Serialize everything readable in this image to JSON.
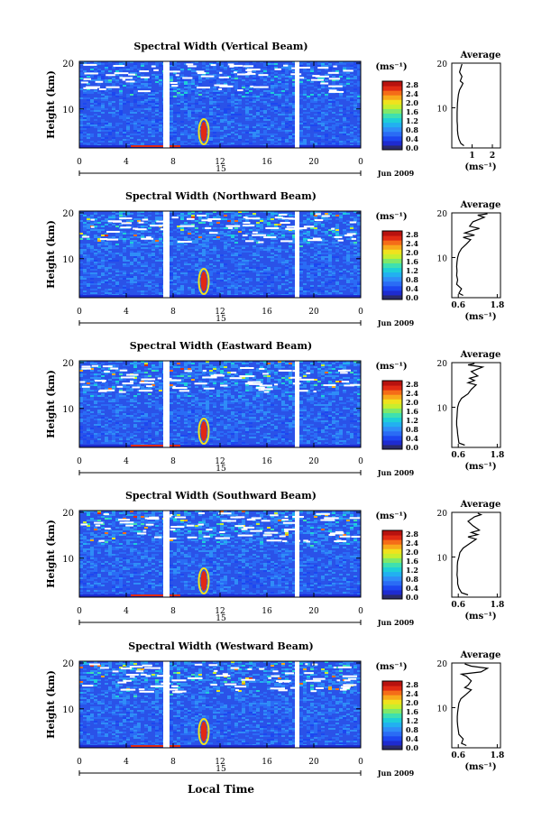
{
  "xlabel": "Local Time",
  "colorbar_unit": "(ms⁻¹)",
  "colorbar_ticks": [
    "0.0",
    "0.4",
    "0.8",
    "1.2",
    "1.6",
    "2.0",
    "2.4",
    "2.8"
  ],
  "colorbar_colors": [
    "#2b2b6b",
    "#1e2bd0",
    "#1d47f0",
    "#2a6cf5",
    "#2f8df7",
    "#22b0f0",
    "#1ecfd8",
    "#3fe0b0",
    "#7fe96a",
    "#c8ee2e",
    "#f0e21d",
    "#f8a81b",
    "#f56c18",
    "#e02a14",
    "#b8120f"
  ],
  "time_ticks": [
    "0",
    "4",
    "8",
    "12",
    "16",
    "20",
    "0"
  ],
  "date_day": "15",
  "date_label": "Jun 2009",
  "height_label": "Height (km)",
  "height_ticks": [
    "20",
    "10"
  ],
  "avg_title": "Average",
  "avg_unit": "(ms⁻¹)",
  "panels": [
    {
      "title": "Spectral Width (Vertical Beam)",
      "avg_xticks": [
        "1",
        "2"
      ],
      "avg_xlim": [
        0,
        2.4
      ],
      "avg_ylim": [
        1,
        20
      ],
      "avg_profile": [
        [
          0.6,
          1.5
        ],
        [
          0.45,
          2
        ],
        [
          0.35,
          3
        ],
        [
          0.3,
          4
        ],
        [
          0.28,
          5
        ],
        [
          0.28,
          6
        ],
        [
          0.26,
          7
        ],
        [
          0.26,
          8
        ],
        [
          0.26,
          9
        ],
        [
          0.27,
          10
        ],
        [
          0.28,
          11
        ],
        [
          0.3,
          12
        ],
        [
          0.33,
          13
        ],
        [
          0.38,
          14
        ],
        [
          0.5,
          15
        ],
        [
          0.55,
          15.5
        ],
        [
          0.42,
          16
        ],
        [
          0.5,
          17
        ],
        [
          0.38,
          18
        ],
        [
          0.45,
          19
        ],
        [
          0.5,
          19.8
        ]
      ],
      "red_streak_at_base": true
    },
    {
      "title": "Spectral Width (Northward Beam)",
      "avg_xticks": [
        "0.6",
        "1.8"
      ],
      "avg_xlim": [
        0.4,
        1.9
      ],
      "avg_ylim": [
        1,
        20
      ],
      "avg_profile": [
        [
          0.75,
          1.5
        ],
        [
          0.62,
          2
        ],
        [
          0.7,
          3
        ],
        [
          0.55,
          4
        ],
        [
          0.58,
          5
        ],
        [
          0.55,
          6
        ],
        [
          0.56,
          7
        ],
        [
          0.55,
          8
        ],
        [
          0.56,
          9
        ],
        [
          0.58,
          10
        ],
        [
          0.62,
          11
        ],
        [
          0.7,
          12
        ],
        [
          0.85,
          13
        ],
        [
          0.98,
          14
        ],
        [
          0.75,
          14.5
        ],
        [
          1.1,
          15
        ],
        [
          0.8,
          15.5
        ],
        [
          1.0,
          16
        ],
        [
          1.25,
          16.5
        ],
        [
          0.95,
          17
        ],
        [
          1.05,
          18
        ],
        [
          1.4,
          19
        ],
        [
          1.2,
          19.5
        ],
        [
          1.5,
          19.8
        ]
      ],
      "red_streak_at_base": false
    },
    {
      "title": "Spectral Width (Eastward Beam)",
      "avg_xticks": [
        "0.6",
        "1.8"
      ],
      "avg_xlim": [
        0.4,
        1.9
      ],
      "avg_ylim": [
        1,
        20
      ],
      "avg_profile": [
        [
          0.8,
          1.5
        ],
        [
          0.62,
          2
        ],
        [
          0.6,
          3
        ],
        [
          0.58,
          4
        ],
        [
          0.57,
          5
        ],
        [
          0.55,
          6
        ],
        [
          0.55,
          7
        ],
        [
          0.56,
          8
        ],
        [
          0.57,
          9
        ],
        [
          0.58,
          10
        ],
        [
          0.62,
          11
        ],
        [
          0.7,
          12
        ],
        [
          0.9,
          13
        ],
        [
          1.0,
          14
        ],
        [
          1.15,
          15
        ],
        [
          0.9,
          15.5
        ],
        [
          1.1,
          16
        ],
        [
          0.95,
          16.5
        ],
        [
          1.2,
          17
        ],
        [
          1.0,
          18
        ],
        [
          1.35,
          19
        ],
        [
          0.9,
          19.5
        ],
        [
          1.1,
          19.8
        ]
      ],
      "red_streak_at_base": true
    },
    {
      "title": "Spectral Width (Southward Beam)",
      "avg_xticks": [
        "0.6",
        "1.8"
      ],
      "avg_xlim": [
        0.4,
        1.9
      ],
      "avg_ylim": [
        1,
        20
      ],
      "avg_profile": [
        [
          0.9,
          1.5
        ],
        [
          0.7,
          2
        ],
        [
          0.62,
          3
        ],
        [
          0.58,
          4
        ],
        [
          0.58,
          5
        ],
        [
          0.56,
          6
        ],
        [
          0.57,
          7
        ],
        [
          0.57,
          8
        ],
        [
          0.58,
          9
        ],
        [
          0.62,
          10
        ],
        [
          0.65,
          11
        ],
        [
          0.75,
          12
        ],
        [
          0.95,
          13
        ],
        [
          1.15,
          14
        ],
        [
          0.9,
          14.5
        ],
        [
          1.2,
          15
        ],
        [
          1.0,
          15.5
        ],
        [
          1.25,
          16
        ],
        [
          1.05,
          17
        ],
        [
          0.9,
          18
        ],
        [
          1.1,
          19
        ],
        [
          1.3,
          19.5
        ],
        [
          1.2,
          19.8
        ]
      ],
      "red_streak_at_base": true
    },
    {
      "title": "Spectral Width (Westward Beam)",
      "avg_xticks": [
        "0.6",
        "1.8"
      ],
      "avg_xlim": [
        0.4,
        1.9
      ],
      "avg_ylim": [
        1,
        20
      ],
      "avg_profile": [
        [
          0.85,
          1.5
        ],
        [
          0.7,
          2
        ],
        [
          0.75,
          3
        ],
        [
          0.62,
          4
        ],
        [
          0.6,
          5
        ],
        [
          0.58,
          6
        ],
        [
          0.57,
          7
        ],
        [
          0.57,
          8
        ],
        [
          0.58,
          9
        ],
        [
          0.6,
          10
        ],
        [
          0.62,
          11
        ],
        [
          0.68,
          12
        ],
        [
          0.85,
          13
        ],
        [
          1.0,
          14
        ],
        [
          0.8,
          14.5
        ],
        [
          0.9,
          15
        ],
        [
          1.0,
          16
        ],
        [
          0.85,
          17
        ],
        [
          0.7,
          17.5
        ],
        [
          1.3,
          18
        ],
        [
          1.5,
          18.8
        ],
        [
          1.0,
          19.3
        ],
        [
          0.8,
          19.8
        ]
      ],
      "red_streak_at_base": true
    }
  ],
  "chart_data": {
    "type": "heatmap",
    "title": "",
    "xlabel": "Local Time",
    "ylabel": "Height (km)",
    "xlim": [
      0,
      24
    ],
    "ylim": [
      1,
      20
    ],
    "colorbar_range": [
      0.0,
      2.8
    ],
    "data_gaps_local_time": [
      7,
      18.5
    ],
    "description_series": [
      {
        "name": "Spectral Width (Vertical Beam)"
      },
      {
        "name": "Spectral Width (Northward Beam)"
      },
      {
        "name": "Spectral Width (Eastward Beam)"
      },
      {
        "name": "Spectral Width (Southward Beam)"
      },
      {
        "name": "Spectral Width (Westward Beam)"
      }
    ]
  }
}
